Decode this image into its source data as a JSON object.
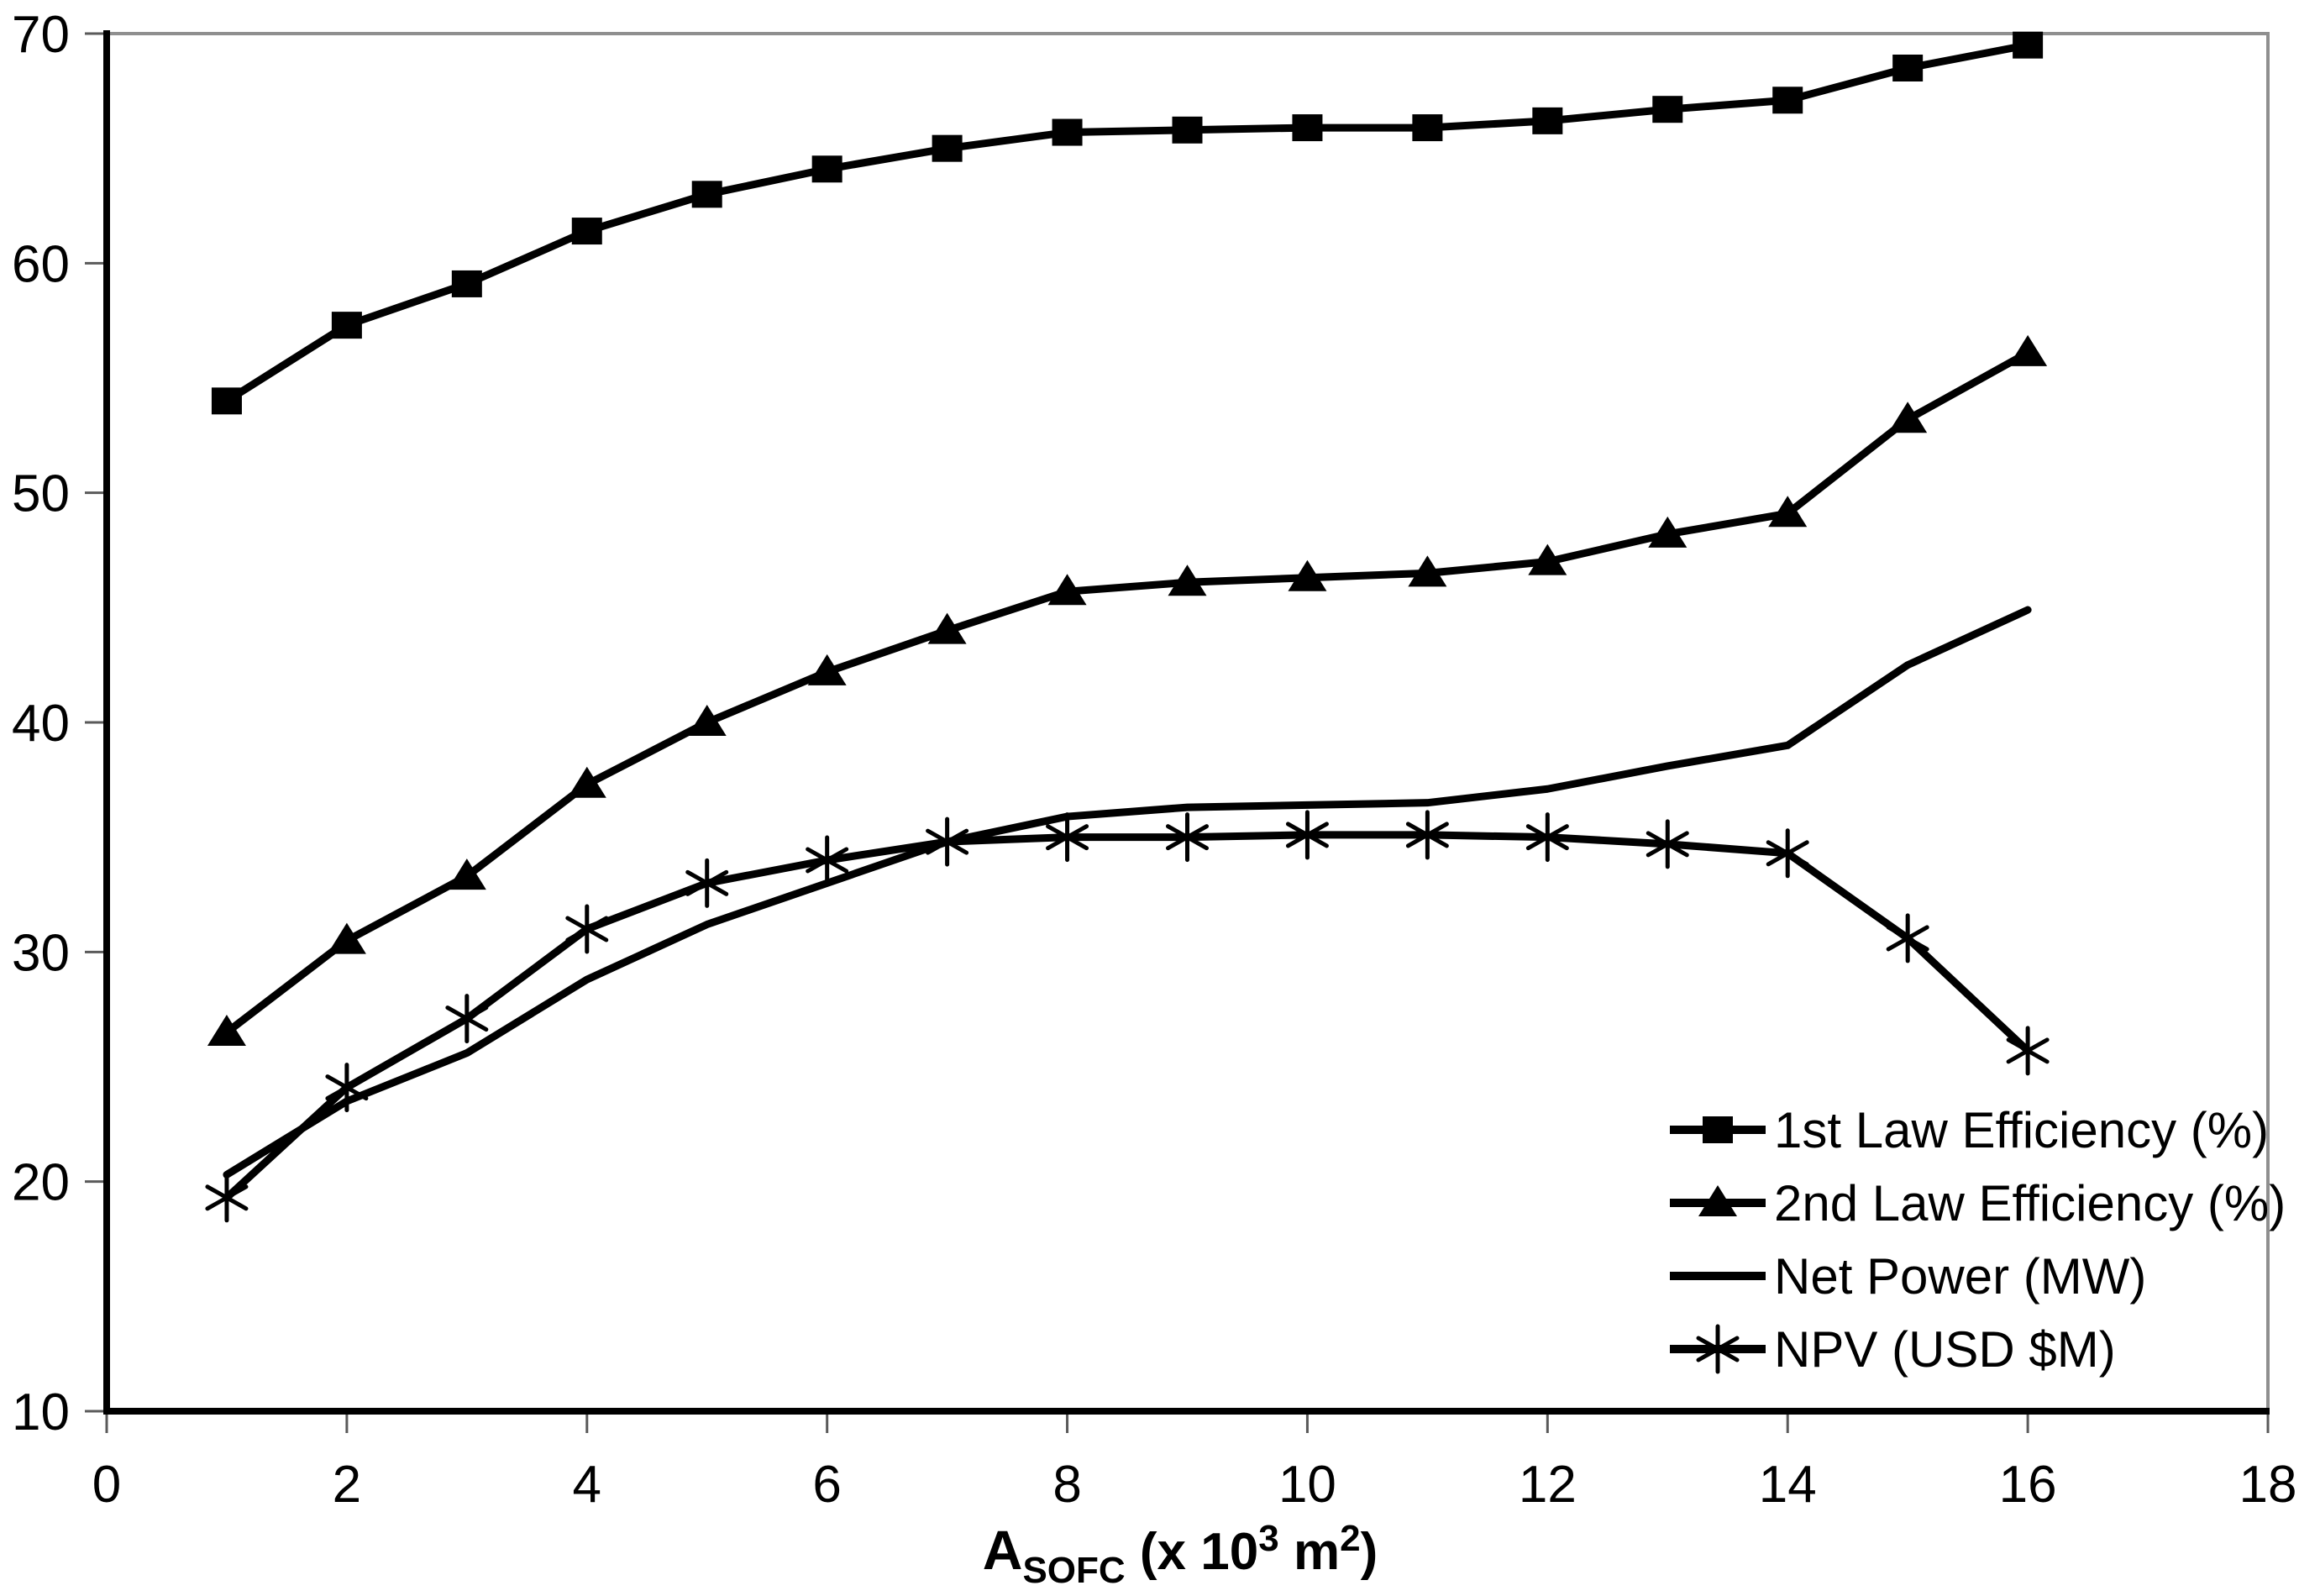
{
  "figure": {
    "background": "#ffffff",
    "ink_color": "#000000",
    "frame_color": "#8f8f8f",
    "tick_color": "#5a5a5a"
  },
  "x_axis": {
    "title_parts": {
      "base": "A",
      "subscript": "SOFC",
      "mid1": " (x 10",
      "sup1": "3",
      "mid2": " m",
      "sup2": "2",
      "end": ")"
    },
    "tick_labels": [
      "0",
      "2",
      "4",
      "6",
      "8",
      "10",
      "12",
      "14",
      "16",
      "18"
    ],
    "min": 0,
    "max": 18
  },
  "y_axis": {
    "tick_labels": [
      "10",
      "20",
      "30",
      "40",
      "50",
      "60",
      "70"
    ],
    "min": 10,
    "max": 70
  },
  "chart_data": {
    "type": "line",
    "title": "",
    "xlabel": "A_SOFC (x 10³ m²)",
    "ylabel": "",
    "xlim": [
      0,
      18
    ],
    "ylim": [
      10,
      70
    ],
    "x_tick_step": 2,
    "y_tick_step": 10,
    "grid": false,
    "legend_position": "inside-bottom-right",
    "line_color": "#000000",
    "x": [
      1,
      2,
      3,
      4,
      5,
      6,
      7,
      8,
      9,
      10,
      11,
      12,
      13,
      14,
      15,
      16
    ],
    "series": [
      {
        "name": "1st Law Efficiency (%)",
        "marker": "square",
        "values": [
          54.0,
          57.3,
          59.1,
          61.4,
          63.0,
          64.1,
          65.0,
          65.7,
          65.8,
          65.9,
          65.9,
          66.2,
          66.7,
          67.1,
          68.5,
          69.5
        ]
      },
      {
        "name": "2nd Law Efficiency (%)",
        "marker": "triangle",
        "values": [
          26.5,
          30.5,
          33.3,
          37.3,
          40.0,
          42.2,
          44.0,
          45.7,
          46.1,
          46.3,
          46.5,
          47.0,
          48.2,
          49.1,
          53.2,
          56.1
        ]
      },
      {
        "name": "Net Power (MW)",
        "marker": "none",
        "values": [
          20.3,
          23.5,
          25.6,
          28.8,
          31.2,
          33.0,
          34.8,
          35.9,
          36.3,
          36.4,
          36.5,
          37.1,
          38.1,
          39.0,
          42.5,
          44.9
        ]
      },
      {
        "name": "NPV (USD $M)",
        "marker": "asterisk",
        "values": [
          19.3,
          24.1,
          27.1,
          31.0,
          33.0,
          34.0,
          34.8,
          35.0,
          35.0,
          35.1,
          35.1,
          35.0,
          34.7,
          34.3,
          30.6,
          25.7
        ]
      }
    ]
  }
}
